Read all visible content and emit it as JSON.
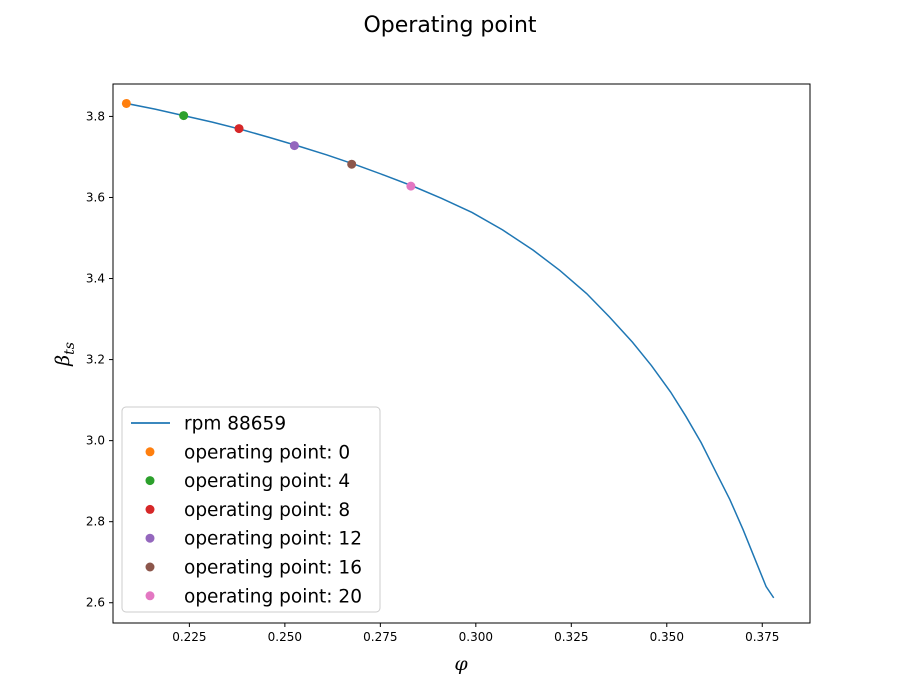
{
  "chart_data": {
    "type": "line",
    "title": "Operating point",
    "xlabel": "φ",
    "ylabel_main": "β",
    "ylabel_sub": "ts",
    "xlim": [
      0.205,
      0.3875
    ],
    "ylim": [
      2.55,
      3.88
    ],
    "xticks": [
      0.225,
      0.25,
      0.275,
      0.3,
      0.325,
      0.35,
      0.375
    ],
    "xtick_labels": [
      "0.225",
      "0.250",
      "0.275",
      "0.300",
      "0.325",
      "0.350",
      "0.375"
    ],
    "yticks": [
      2.6,
      2.8,
      3.0,
      3.2,
      3.4,
      3.6,
      3.8
    ],
    "ytick_labels": [
      "2.6",
      "2.8",
      "3.0",
      "3.2",
      "3.4",
      "3.6",
      "3.8"
    ],
    "grid": false,
    "legend_position": "lower-left",
    "series": [
      {
        "name": "rpm 88659",
        "color": "#1f77b4",
        "x": [
          0.2085,
          0.216,
          0.2235,
          0.231,
          0.2385,
          0.246,
          0.2535,
          0.261,
          0.2685,
          0.276,
          0.2835,
          0.291,
          0.299,
          0.307,
          0.315,
          0.322,
          0.329,
          0.335,
          0.341,
          0.346,
          0.351,
          0.355,
          0.359,
          0.363,
          0.3665,
          0.37,
          0.373,
          0.376,
          0.378
        ],
        "y": [
          3.832,
          3.818,
          3.802,
          3.786,
          3.768,
          3.748,
          3.727,
          3.705,
          3.681,
          3.655,
          3.628,
          3.598,
          3.563,
          3.52,
          3.47,
          3.42,
          3.363,
          3.305,
          3.243,
          3.185,
          3.12,
          3.06,
          2.995,
          2.92,
          2.855,
          2.78,
          2.71,
          2.64,
          2.612
        ]
      },
      {
        "name": "operating point: 0",
        "color": "#ff7f0e",
        "x": [
          0.2085
        ],
        "y": [
          3.832
        ]
      },
      {
        "name": "operating point: 4",
        "color": "#2ca02c",
        "x": [
          0.2235
        ],
        "y": [
          3.802
        ]
      },
      {
        "name": "operating point: 8",
        "color": "#d62728",
        "x": [
          0.238
        ],
        "y": [
          3.77
        ]
      },
      {
        "name": "operating point: 12",
        "color": "#9467bd",
        "x": [
          0.2525
        ],
        "y": [
          3.728
        ]
      },
      {
        "name": "operating point: 16",
        "color": "#8c564b",
        "x": [
          0.2675
        ],
        "y": [
          3.682
        ]
      },
      {
        "name": "operating point: 20",
        "color": "#e377c2",
        "x": [
          0.283
        ],
        "y": [
          3.628
        ]
      }
    ]
  }
}
